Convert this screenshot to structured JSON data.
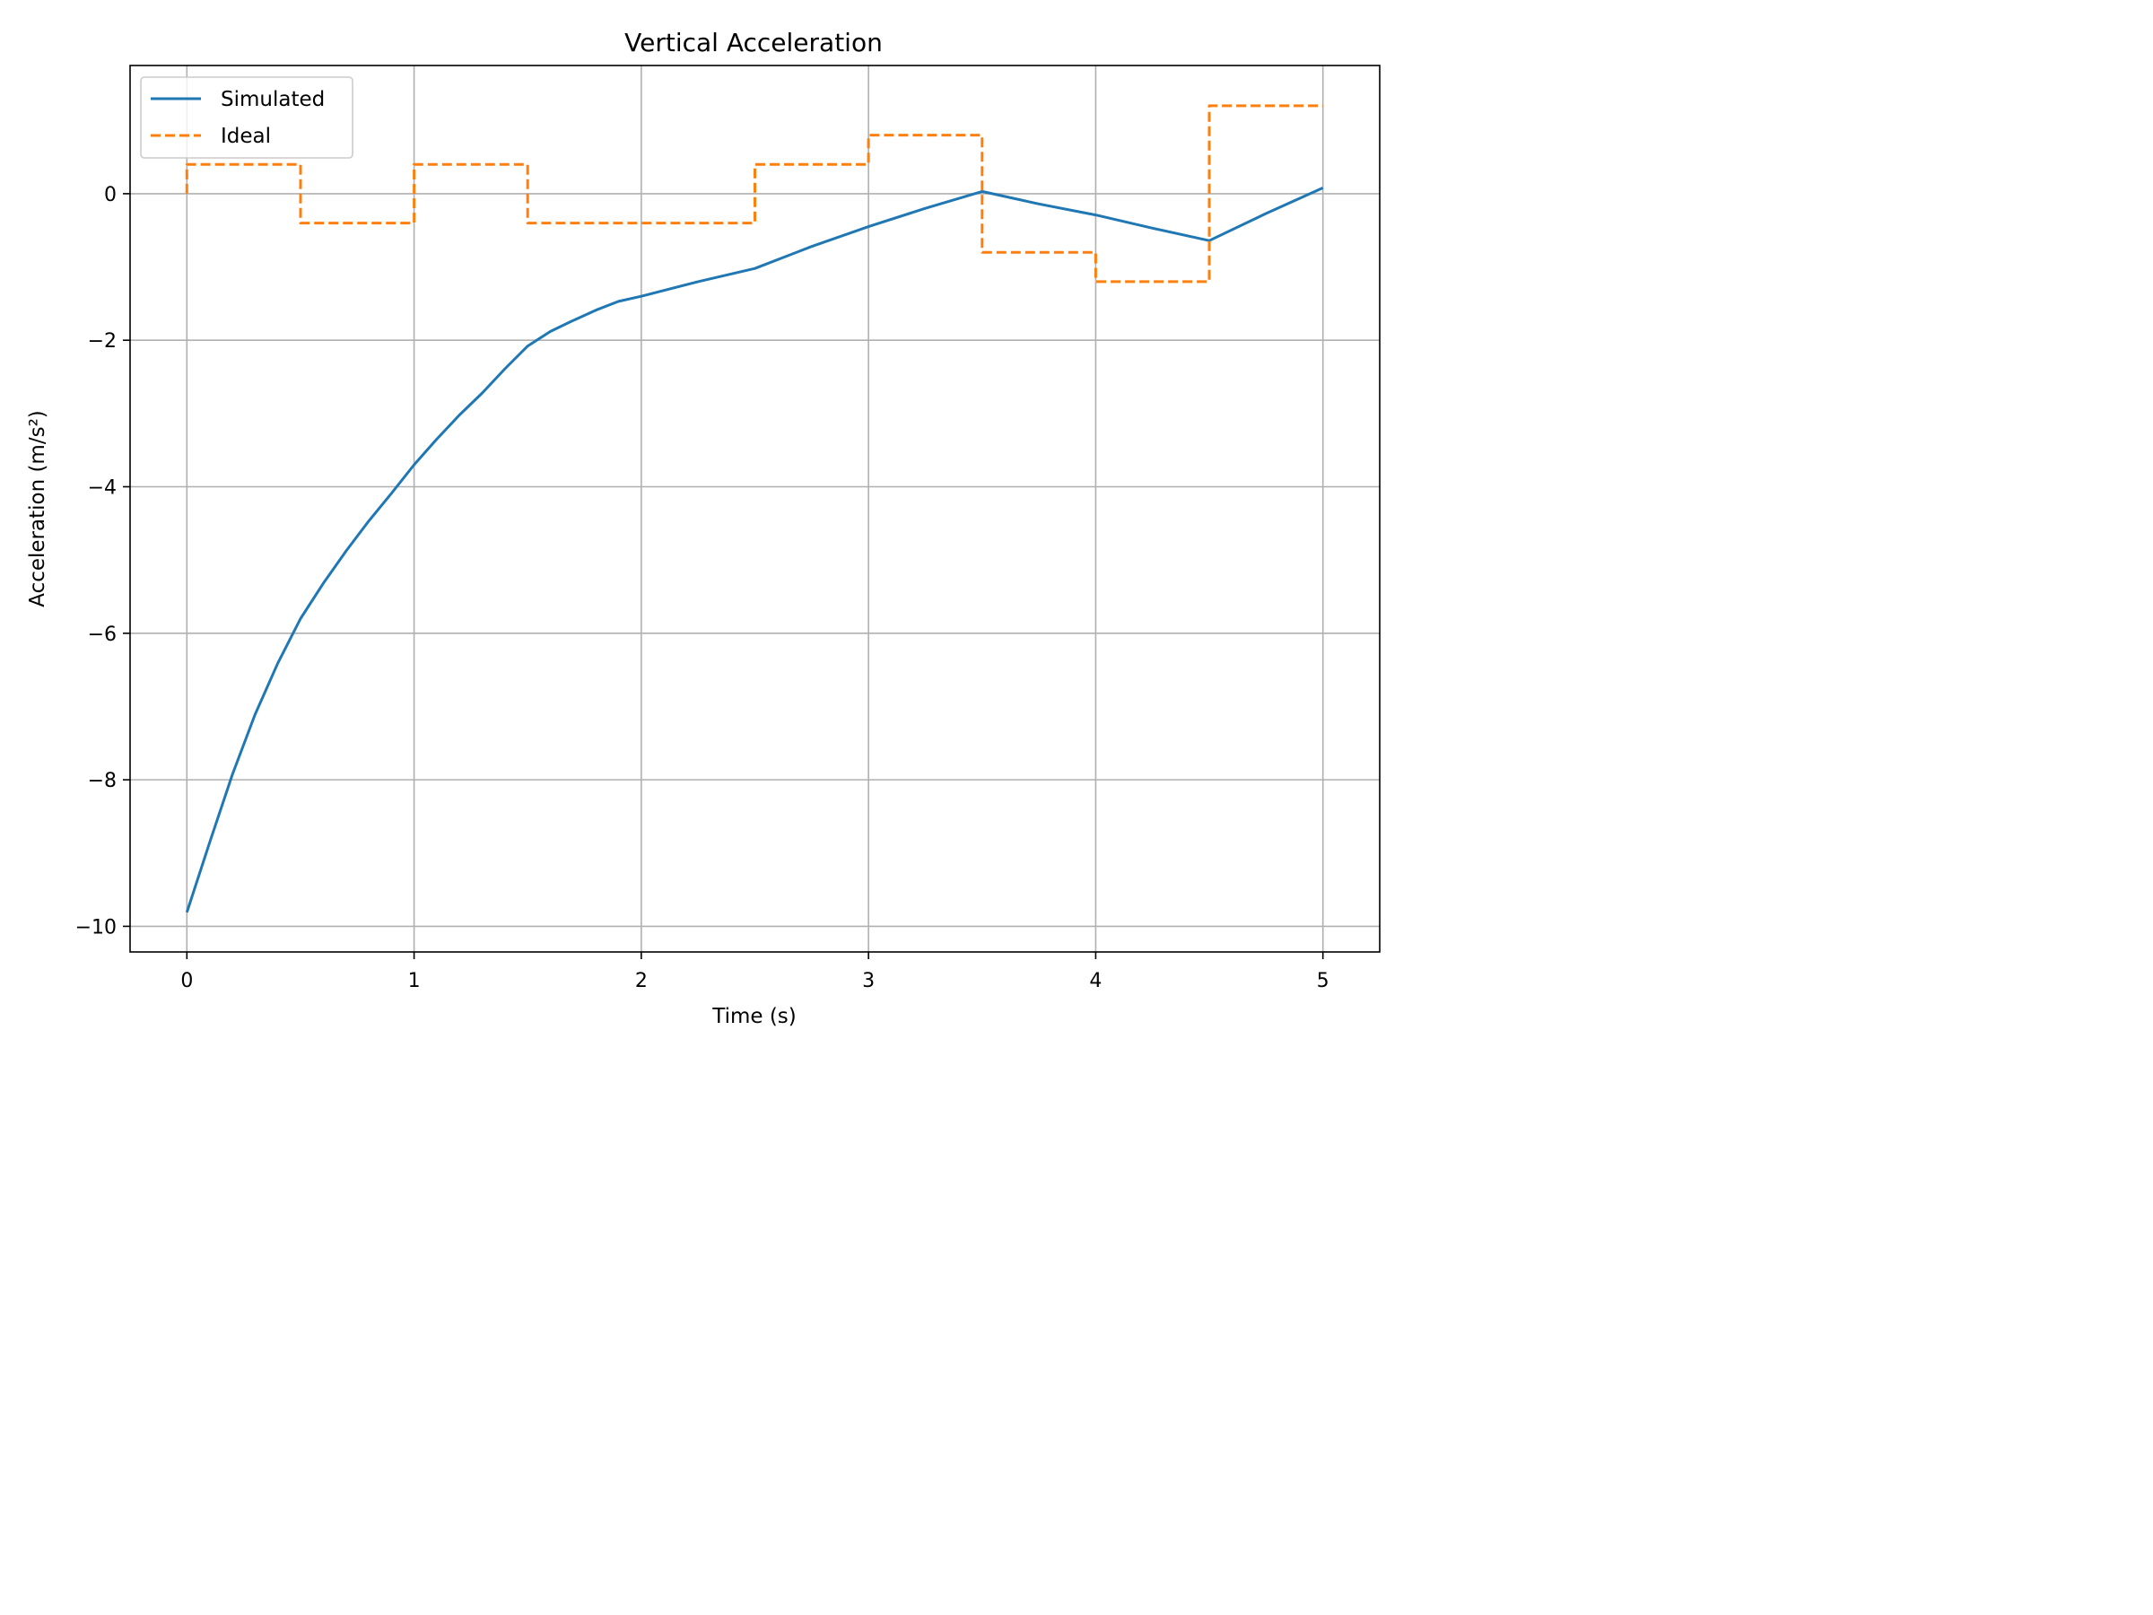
{
  "chart_data": {
    "type": "line",
    "title": "Vertical Acceleration",
    "xlabel": "Time (s)",
    "ylabel": "Acceleration (m/s²)",
    "xlim": [
      -0.25,
      5.25
    ],
    "ylim": [
      -10.35,
      1.75
    ],
    "xticks": [
      0,
      1,
      2,
      3,
      4,
      5
    ],
    "xtick_labels": [
      "0",
      "1",
      "2",
      "3",
      "4",
      "5"
    ],
    "yticks": [
      -10,
      -8,
      -6,
      -4,
      -2,
      0
    ],
    "ytick_labels": [
      "−10",
      "−8",
      "−6",
      "−4",
      "−2",
      "0"
    ],
    "grid": true,
    "legend_position": "upper-left",
    "series": [
      {
        "name": "Simulated",
        "color": "#1f77b4",
        "style": "solid",
        "x": [
          0,
          0.1,
          0.2,
          0.3,
          0.4,
          0.5,
          0.6,
          0.7,
          0.8,
          0.9,
          1.0,
          1.1,
          1.2,
          1.3,
          1.4,
          1.5,
          1.6,
          1.7,
          1.8,
          1.9,
          2.0,
          2.25,
          2.5,
          2.75,
          3.0,
          3.25,
          3.5,
          3.75,
          4.0,
          4.25,
          4.5,
          4.75,
          5.0
        ],
        "y": [
          -9.81,
          -8.86,
          -7.93,
          -7.11,
          -6.41,
          -5.8,
          -5.32,
          -4.88,
          -4.47,
          -4.09,
          -3.7,
          -3.35,
          -3.02,
          -2.72,
          -2.39,
          -2.08,
          -1.88,
          -1.73,
          -1.59,
          -1.47,
          -1.4,
          -1.2,
          -1.02,
          -0.72,
          -0.45,
          -0.2,
          0.03,
          -0.14,
          -0.29,
          -0.47,
          -0.64,
          -0.27,
          0.08
        ]
      },
      {
        "name": "Ideal",
        "color": "#ff7f0e",
        "style": "dashed",
        "x": [
          0,
          0,
          0.5,
          0.5,
          1.0,
          1.0,
          1.5,
          1.5,
          2.5,
          2.5,
          3.0,
          3.0,
          3.5,
          3.5,
          4.0,
          4.0,
          4.5,
          4.5,
          5.0
        ],
        "y": [
          0,
          0.4,
          0.4,
          -0.4,
          -0.4,
          0.4,
          0.4,
          -0.4,
          -0.4,
          0.4,
          0.4,
          0.8,
          0.8,
          -0.8,
          -0.8,
          -1.2,
          -1.2,
          1.2,
          1.2
        ]
      }
    ]
  }
}
